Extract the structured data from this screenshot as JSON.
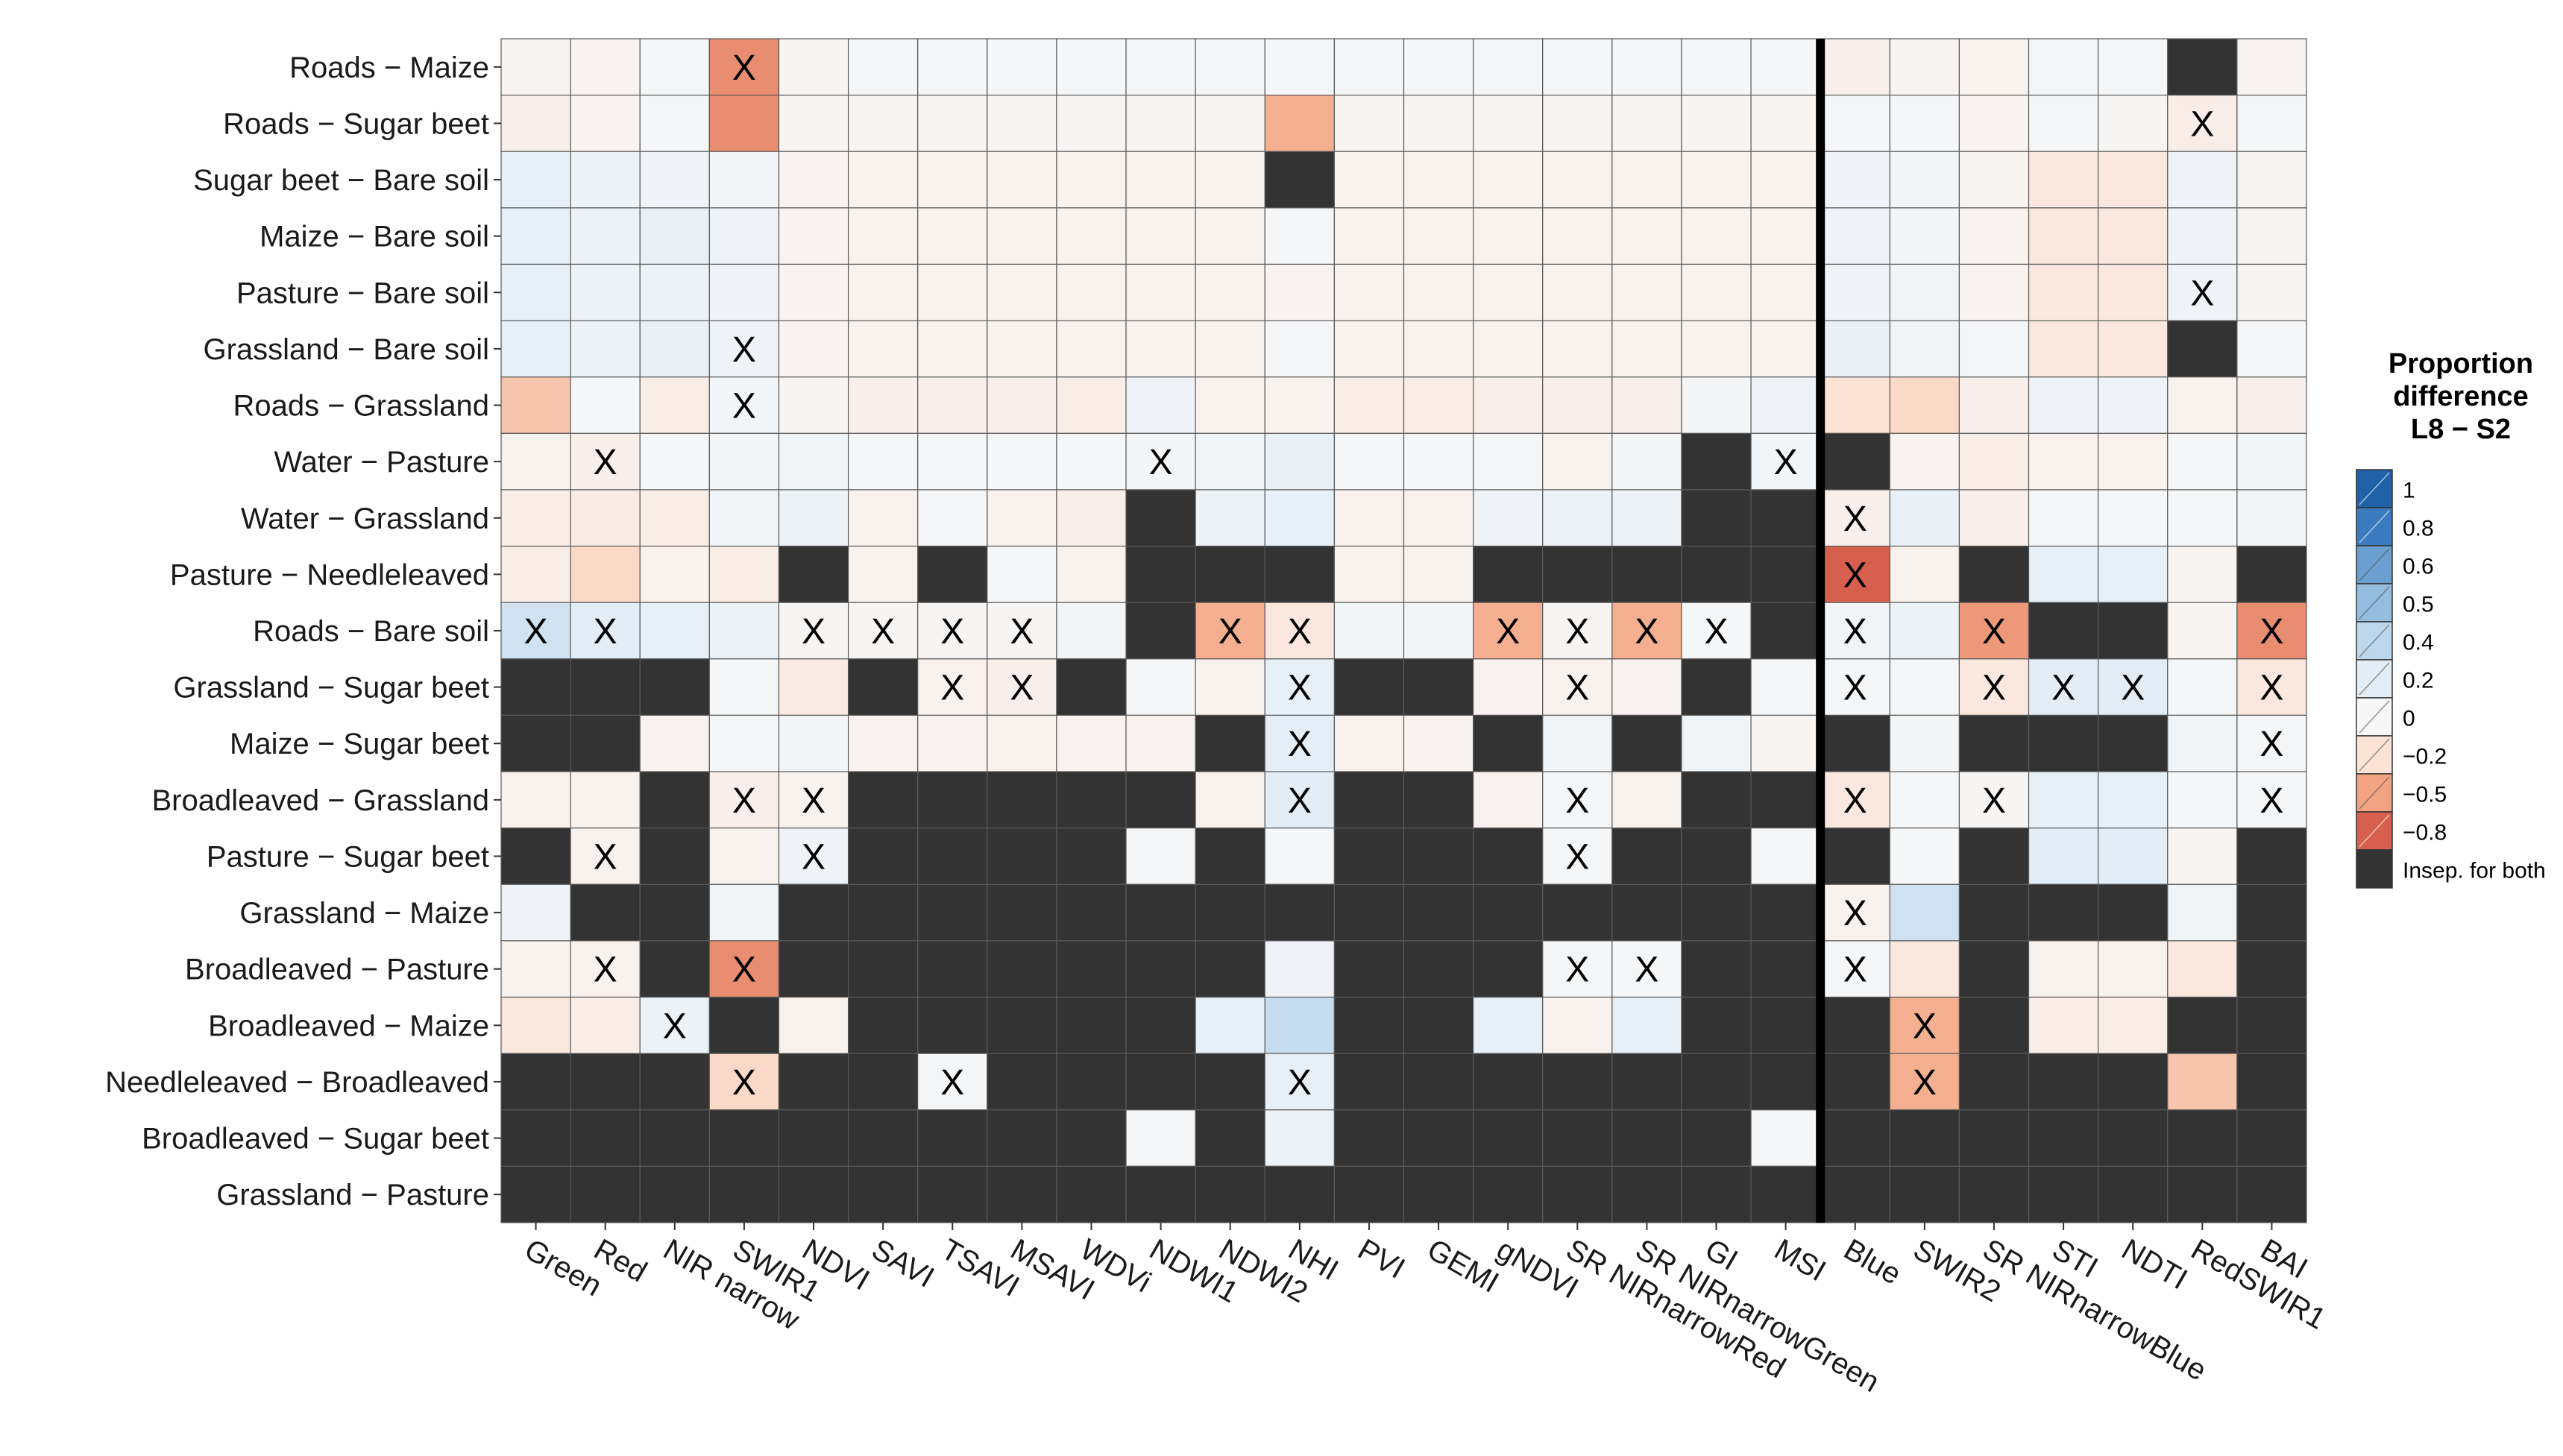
{
  "chart_data": {
    "type": "heatmap",
    "title": "",
    "xlabel": "",
    "ylabel": "",
    "rows": [
      "Roads − Maize",
      "Roads − Sugar beet",
      "Sugar beet − Bare soil",
      "Maize − Bare soil",
      "Pasture − Bare soil",
      "Grassland − Bare soil",
      "Roads − Grassland",
      "Water − Pasture",
      "Water − Grassland",
      "Pasture − Needleleaved",
      "Roads − Bare soil",
      "Grassland − Sugar beet",
      "Maize − Sugar beet",
      "Broadleaved − Grassland",
      "Pasture − Sugar beet",
      "Grassland − Maize",
      "Broadleaved − Pasture",
      "Broadleaved − Maize",
      "Needleleaved − Broadleaved",
      "Broadleaved − Sugar beet",
      "Grassland − Pasture"
    ],
    "columns": [
      "Green",
      "Red",
      "NIR narrow",
      "SWIR1",
      "NDVI",
      "SAVI",
      "TSAVI",
      "MSAVI",
      "WDVi",
      "NDWI1",
      "NDWI2",
      "NHI",
      "PVI",
      "GEMI",
      "gNDVI",
      "SR NIRnarrowRed",
      "SR NIRnarrowGreen",
      "GI",
      "MSI",
      "Blue",
      "SWIR2",
      "SR NIRnarrowBlue",
      "STI",
      "NDTI",
      "RedSWIR1",
      "BAI"
    ],
    "separator_after_column": "MSI",
    "values_note_null": "null = Insep. for both",
    "values": [
      [
        -0.03,
        -0.04,
        0.03,
        -0.6,
        -0.02,
        0.02,
        0.02,
        0.02,
        0.03,
        0.02,
        0.02,
        0.02,
        0.03,
        0.03,
        0.02,
        0.02,
        0.02,
        0.02,
        0.02,
        -0.08,
        -0.03,
        -0.05,
        0.02,
        0.02,
        null,
        -0.04
      ],
      [
        -0.08,
        -0.04,
        0.02,
        -0.6,
        -0.02,
        -0.03,
        -0.03,
        -0.03,
        -0.02,
        -0.03,
        -0.03,
        -0.45,
        -0.03,
        -0.03,
        -0.03,
        -0.03,
        -0.03,
        -0.03,
        -0.03,
        0.02,
        0.02,
        -0.04,
        0.02,
        -0.02,
        -0.1,
        0.02
      ],
      [
        0.15,
        0.1,
        0.08,
        0.05,
        -0.04,
        -0.05,
        -0.05,
        -0.05,
        -0.05,
        -0.05,
        -0.05,
        null,
        -0.05,
        -0.05,
        -0.05,
        -0.05,
        -0.05,
        -0.05,
        -0.05,
        0.08,
        0.05,
        -0.03,
        -0.15,
        -0.15,
        0.08,
        -0.03
      ],
      [
        0.15,
        0.1,
        0.12,
        0.08,
        -0.04,
        -0.05,
        -0.05,
        -0.05,
        -0.05,
        -0.05,
        -0.05,
        0.02,
        -0.05,
        -0.05,
        -0.05,
        -0.05,
        -0.05,
        -0.05,
        -0.05,
        0.08,
        0.05,
        -0.04,
        -0.15,
        -0.15,
        0.08,
        -0.03
      ],
      [
        0.15,
        0.1,
        0.1,
        0.08,
        -0.04,
        -0.05,
        -0.05,
        -0.05,
        -0.05,
        -0.05,
        -0.05,
        -0.04,
        -0.05,
        -0.05,
        -0.05,
        -0.05,
        -0.05,
        -0.05,
        -0.05,
        0.08,
        0.06,
        -0.04,
        -0.15,
        -0.15,
        0.08,
        -0.03
      ],
      [
        0.15,
        0.1,
        0.12,
        0.08,
        -0.04,
        -0.05,
        -0.05,
        -0.05,
        -0.05,
        -0.05,
        -0.05,
        0.02,
        -0.05,
        -0.05,
        -0.05,
        -0.05,
        -0.05,
        -0.05,
        -0.05,
        0.12,
        0.06,
        0.03,
        -0.15,
        -0.15,
        null,
        0.02
      ],
      [
        -0.35,
        0.02,
        -0.1,
        0.05,
        -0.03,
        -0.08,
        -0.08,
        -0.08,
        -0.1,
        0.08,
        -0.05,
        -0.05,
        -0.1,
        -0.1,
        -0.08,
        -0.08,
        -0.08,
        0.04,
        0.08,
        -0.2,
        -0.25,
        -0.08,
        0.08,
        0.08,
        -0.05,
        -0.08
      ],
      [
        -0.05,
        -0.08,
        0.02,
        0.04,
        0.06,
        0.03,
        0.03,
        0.03,
        0.02,
        0.04,
        0.06,
        0.12,
        0.03,
        0.03,
        0.03,
        -0.05,
        0.04,
        null,
        0.05,
        null,
        -0.04,
        -0.1,
        -0.06,
        -0.06,
        0.02,
        0.05
      ],
      [
        -0.1,
        -0.12,
        -0.1,
        0.05,
        0.1,
        -0.06,
        0.02,
        -0.06,
        -0.08,
        null,
        0.1,
        0.15,
        -0.06,
        -0.06,
        0.08,
        0.1,
        0.1,
        null,
        null,
        -0.08,
        0.12,
        -0.08,
        0.02,
        0.02,
        0.03,
        0.04
      ],
      [
        -0.1,
        -0.25,
        -0.06,
        -0.1,
        null,
        -0.05,
        null,
        0.02,
        -0.05,
        null,
        null,
        null,
        -0.06,
        -0.05,
        null,
        null,
        null,
        null,
        null,
        -0.8,
        -0.06,
        null,
        0.15,
        0.15,
        -0.03,
        null
      ],
      [
        0.3,
        0.2,
        0.15,
        0.1,
        -0.02,
        -0.02,
        -0.02,
        -0.02,
        0.05,
        null,
        -0.45,
        -0.15,
        0.05,
        0.05,
        -0.45,
        -0.02,
        -0.45,
        0.02,
        null,
        0.06,
        0.1,
        -0.55,
        null,
        null,
        -0.03,
        -0.6
      ],
      [
        null,
        null,
        null,
        0.02,
        -0.12,
        null,
        -0.06,
        -0.08,
        null,
        0.02,
        -0.05,
        0.15,
        null,
        null,
        -0.04,
        -0.06,
        -0.04,
        null,
        0.02,
        0.02,
        0.02,
        -0.15,
        0.2,
        0.2,
        0.02,
        -0.15
      ],
      [
        null,
        null,
        -0.04,
        0.02,
        0.05,
        -0.04,
        -0.04,
        -0.05,
        -0.04,
        -0.04,
        null,
        0.18,
        -0.05,
        -0.04,
        null,
        0.06,
        null,
        0.06,
        -0.03,
        null,
        0.04,
        null,
        null,
        null,
        0.06,
        0.02
      ],
      [
        -0.06,
        -0.06,
        null,
        -0.08,
        -0.05,
        null,
        null,
        null,
        null,
        null,
        -0.06,
        0.2,
        null,
        null,
        -0.04,
        0.03,
        -0.05,
        null,
        null,
        -0.15,
        0.02,
        -0.02,
        0.15,
        0.15,
        0.02,
        0.02
      ],
      [
        null,
        -0.06,
        null,
        -0.05,
        0.08,
        null,
        null,
        null,
        null,
        0.02,
        null,
        0.03,
        null,
        null,
        null,
        0.02,
        null,
        null,
        0.02,
        null,
        0.02,
        null,
        0.2,
        0.2,
        -0.03,
        null
      ],
      [
        0.08,
        null,
        null,
        0.06,
        null,
        null,
        null,
        null,
        null,
        null,
        null,
        null,
        null,
        null,
        null,
        null,
        null,
        null,
        null,
        -0.06,
        0.3,
        null,
        null,
        null,
        0.06,
        null
      ],
      [
        -0.05,
        -0.06,
        null,
        -0.6,
        null,
        null,
        null,
        null,
        null,
        null,
        null,
        0.08,
        null,
        null,
        null,
        0.02,
        0.02,
        null,
        null,
        0.02,
        -0.15,
        null,
        -0.05,
        -0.05,
        -0.15,
        null
      ],
      [
        -0.15,
        -0.1,
        0.1,
        null,
        -0.05,
        null,
        null,
        null,
        null,
        null,
        0.15,
        0.35,
        null,
        null,
        0.15,
        -0.05,
        0.15,
        null,
        null,
        null,
        -0.45,
        null,
        -0.1,
        -0.1,
        null,
        null
      ],
      [
        null,
        null,
        null,
        -0.25,
        null,
        null,
        0.02,
        null,
        null,
        null,
        null,
        0.15,
        null,
        null,
        null,
        null,
        null,
        null,
        null,
        null,
        -0.45,
        null,
        null,
        null,
        -0.35,
        null
      ],
      [
        null,
        null,
        null,
        null,
        null,
        null,
        null,
        null,
        null,
        0.03,
        null,
        0.1,
        null,
        null,
        null,
        null,
        null,
        null,
        0.02,
        null,
        null,
        null,
        null,
        null,
        null,
        null
      ],
      [
        null,
        null,
        null,
        null,
        null,
        null,
        null,
        null,
        null,
        null,
        null,
        null,
        null,
        null,
        null,
        null,
        null,
        null,
        null,
        null,
        null,
        null,
        null,
        null,
        null,
        null
      ]
    ],
    "marked_symbol": "X",
    "marked_cells": [
      [
        0,
        3
      ],
      [
        1,
        24
      ],
      [
        4,
        24
      ],
      [
        5,
        3
      ],
      [
        6,
        3
      ],
      [
        7,
        1
      ],
      [
        7,
        9
      ],
      [
        7,
        18
      ],
      [
        8,
        19
      ],
      [
        9,
        19
      ],
      [
        10,
        0
      ],
      [
        10,
        1
      ],
      [
        10,
        4
      ],
      [
        10,
        5
      ],
      [
        10,
        6
      ],
      [
        10,
        7
      ],
      [
        10,
        10
      ],
      [
        10,
        11
      ],
      [
        10,
        14
      ],
      [
        10,
        15
      ],
      [
        10,
        16
      ],
      [
        10,
        17
      ],
      [
        10,
        19
      ],
      [
        10,
        21
      ],
      [
        10,
        25
      ],
      [
        11,
        6
      ],
      [
        11,
        7
      ],
      [
        11,
        11
      ],
      [
        11,
        15
      ],
      [
        11,
        19
      ],
      [
        11,
        21
      ],
      [
        11,
        22
      ],
      [
        11,
        23
      ],
      [
        11,
        25
      ],
      [
        12,
        11
      ],
      [
        12,
        25
      ],
      [
        13,
        3
      ],
      [
        13,
        4
      ],
      [
        13,
        11
      ],
      [
        13,
        15
      ],
      [
        13,
        19
      ],
      [
        13,
        21
      ],
      [
        13,
        25
      ],
      [
        14,
        1
      ],
      [
        14,
        4
      ],
      [
        14,
        15
      ],
      [
        15,
        19
      ],
      [
        16,
        1
      ],
      [
        16,
        3
      ],
      [
        16,
        15
      ],
      [
        16,
        16
      ],
      [
        16,
        19
      ],
      [
        17,
        2
      ],
      [
        17,
        20
      ],
      [
        18,
        3
      ],
      [
        18,
        6
      ],
      [
        18,
        11
      ],
      [
        18,
        20
      ]
    ],
    "legend": {
      "title_lines": [
        "Proportion",
        "difference",
        "L8 − S2"
      ],
      "entries": [
        {
          "label": "1",
          "value": 1.0,
          "color": "#1f62a8"
        },
        {
          "label": "0.8",
          "value": 0.8,
          "color": "#3a7bbf"
        },
        {
          "label": "0.6",
          "value": 0.6,
          "color": "#6a9fd0"
        },
        {
          "label": "0.5",
          "value": 0.5,
          "color": "#94bde0"
        },
        {
          "label": "0.4",
          "value": 0.4,
          "color": "#bdd7ec"
        },
        {
          "label": "0.2",
          "value": 0.2,
          "color": "#e2edf6"
        },
        {
          "label": "0",
          "value": 0.0,
          "color": "#f7f7f7"
        },
        {
          "label": "−0.2",
          "value": -0.2,
          "color": "#fbe3d6"
        },
        {
          "label": "−0.5",
          "value": -0.5,
          "color": "#f2a482"
        },
        {
          "label": "−0.8",
          "value": -0.8,
          "color": "#d6604d"
        },
        {
          "label": "Insep. for both",
          "value": null,
          "color": "#333333"
        }
      ],
      "placement": "right"
    },
    "colors": {
      "na": "#333333",
      "separator": "#000000",
      "grid_border": "#5a5a5a"
    }
  }
}
